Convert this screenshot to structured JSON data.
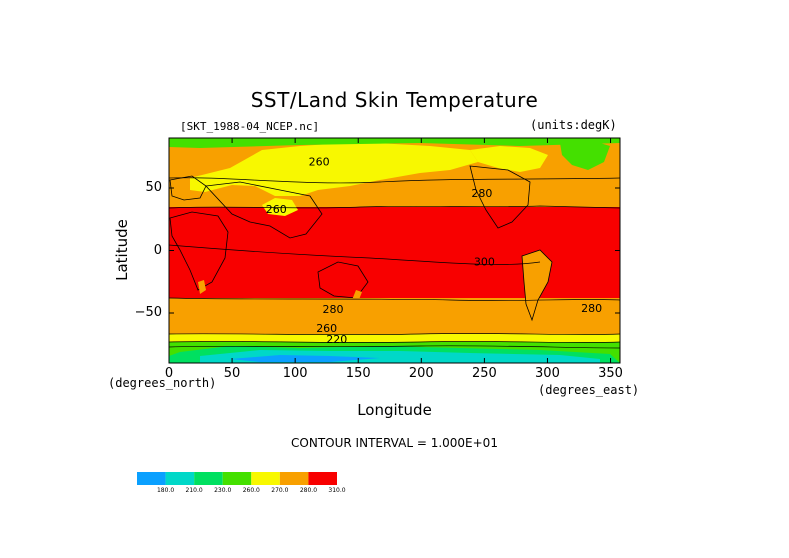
{
  "title": "SST/Land Skin Temperature",
  "file_label": "[SKT_1988-04_NCEP.nc]",
  "units_label": "(units:degK)",
  "x_axis": {
    "label": "Longitude",
    "units": "(degrees_east)",
    "ticks": [
      "0",
      "50",
      "100",
      "150",
      "200",
      "250",
      "300",
      "350"
    ],
    "tick_values": [
      0,
      50,
      100,
      150,
      200,
      250,
      300,
      350
    ],
    "range": [
      0,
      357.5
    ]
  },
  "y_axis": {
    "label": "Latitude",
    "units": "(degrees_north)",
    "ticks": [
      "50",
      "0",
      "−50"
    ],
    "tick_values": [
      50,
      0,
      -50
    ],
    "range": [
      -90,
      90
    ]
  },
  "contour_interval": "CONTOUR INTERVAL = 1.000E+01",
  "contour_labels": [
    {
      "text": "260",
      "lon": 119,
      "lat": 68
    },
    {
      "text": "260",
      "lon": 85,
      "lat": 30
    },
    {
      "text": "280",
      "lon": 248,
      "lat": 43
    },
    {
      "text": "300",
      "lon": 250,
      "lat": -12
    },
    {
      "text": "280",
      "lon": 130,
      "lat": -50
    },
    {
      "text": "280",
      "lon": 335,
      "lat": -49
    },
    {
      "text": "260",
      "lon": 125,
      "lat": -65
    },
    {
      "text": "220",
      "lon": 133,
      "lat": -74
    }
  ],
  "colorbar": {
    "labels": [
      "180.0",
      "210.0",
      "230.0",
      "260.0",
      "270.0",
      "280.0",
      "310.0"
    ],
    "colors": [
      "#0aa0ff",
      "#00d8c8",
      "#00e060",
      "#44e000",
      "#f8f800",
      "#f8a000",
      "#f80000"
    ]
  },
  "zone_colors": {
    "ocean_warm": "#f80000",
    "ocean_mid": "#f8a000",
    "cold": "#f8f800",
    "green": "#44e000",
    "teal": "#00e060",
    "cyan": "#00d8c8",
    "blue": "#0aa0ff"
  }
}
